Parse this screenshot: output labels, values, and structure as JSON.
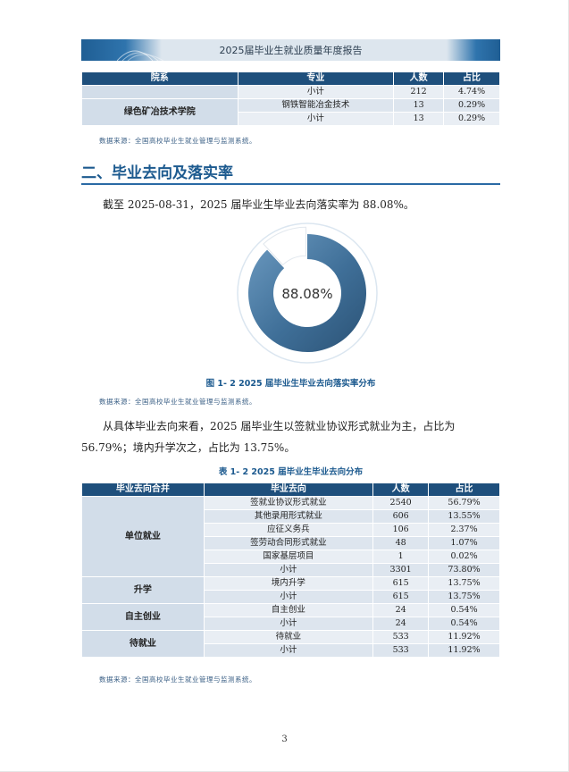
{
  "header": {
    "title": "2025届毕业生就业质量年度报告"
  },
  "table_top": {
    "headers": [
      "院系",
      "专业",
      "人数",
      "占比"
    ],
    "rows": [
      {
        "college": "",
        "major": "小计",
        "count": "212",
        "ratio": "4.74%"
      },
      {
        "college": "绿色矿冶技术学院",
        "major": "钢铁智能冶金技术",
        "count": "13",
        "ratio": "0.29%"
      },
      {
        "college": "",
        "major": "小计",
        "count": "13",
        "ratio": "0.29%"
      }
    ]
  },
  "source_note": "数据来源：全国高校毕业生就业管理与监测系统。",
  "section": {
    "title": "二、毕业去向及落实率"
  },
  "paragraph1": "截至 2025-08-31，2025 届毕业生毕业去向落实率为 88.08%。",
  "chart_data": {
    "type": "pie",
    "style": "donut",
    "center_label": "88.08%",
    "values": [
      88.08,
      11.92
    ],
    "colors": [
      "#3c6f98",
      "#ffffff"
    ],
    "caption": "图 1- 2  2025 届毕业生毕业去向落实率分布"
  },
  "paragraph2_line1": "从具体毕业去向来看，2025 届毕业生以签就业协议形式就业为主，占比为",
  "paragraph2_line2": "56.79%；境内升学次之，占比为 13.75%。",
  "table2": {
    "caption": "表 1- 2  2025 届毕业生毕业去向分布",
    "headers": [
      "毕业去向合并",
      "毕业去向",
      "人数",
      "占比"
    ],
    "groups": [
      {
        "name": "单位就业",
        "rows": [
          {
            "dest": "签就业协议形式就业",
            "count": "2540",
            "ratio": "56.79%"
          },
          {
            "dest": "其他录用形式就业",
            "count": "606",
            "ratio": "13.55%"
          },
          {
            "dest": "应征义务兵",
            "count": "106",
            "ratio": "2.37%"
          },
          {
            "dest": "签劳动合同形式就业",
            "count": "48",
            "ratio": "1.07%"
          },
          {
            "dest": "国家基层项目",
            "count": "1",
            "ratio": "0.02%"
          },
          {
            "dest": "小计",
            "count": "3301",
            "ratio": "73.80%"
          }
        ]
      },
      {
        "name": "升学",
        "rows": [
          {
            "dest": "境内升学",
            "count": "615",
            "ratio": "13.75%"
          },
          {
            "dest": "小计",
            "count": "615",
            "ratio": "13.75%"
          }
        ]
      },
      {
        "name": "自主创业",
        "rows": [
          {
            "dest": "自主创业",
            "count": "24",
            "ratio": "0.54%"
          },
          {
            "dest": "小计",
            "count": "24",
            "ratio": "0.54%"
          }
        ]
      },
      {
        "name": "待就业",
        "rows": [
          {
            "dest": "待就业",
            "count": "533",
            "ratio": "11.92%"
          },
          {
            "dest": "小计",
            "count": "533",
            "ratio": "11.92%"
          }
        ]
      }
    ]
  },
  "page_number": "3"
}
